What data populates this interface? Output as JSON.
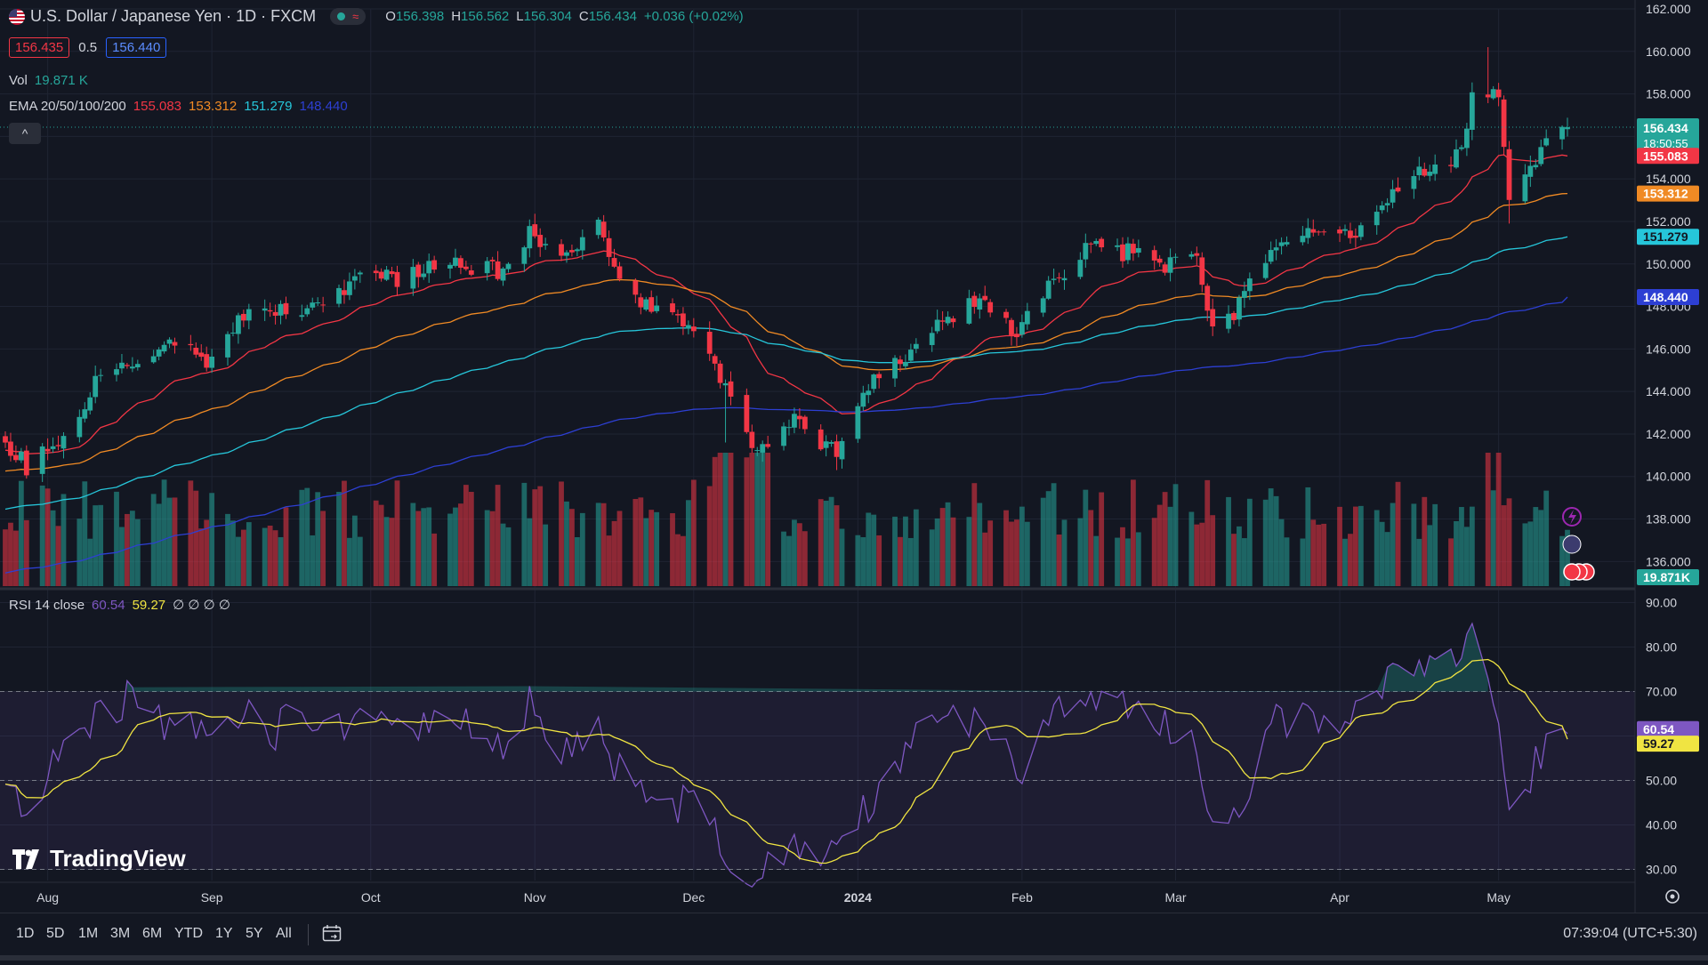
{
  "header": {
    "symbol_title": "U.S. Dollar / Japanese Yen · 1D · FXCM",
    "ohlc": {
      "o_label": "O",
      "o": "156.398",
      "h_label": "H",
      "h": "156.562",
      "l_label": "L",
      "l": "156.304",
      "c_label": "C",
      "c": "156.434",
      "change": "+0.036 (+0.02%)"
    },
    "sell_price": "156.435",
    "spread": "0.5",
    "buy_price": "156.440",
    "vol_label": "Vol",
    "vol_value": "19.871 K",
    "ema_label": "EMA 20/50/100/200",
    "ema_values": [
      "155.083",
      "153.312",
      "151.279",
      "148.440"
    ],
    "collapse_glyph": "^"
  },
  "rsi_legend": {
    "label": "RSI 14 close",
    "rsi": "60.54",
    "ma": "59.27",
    "extra": "∅ ∅ ∅ ∅"
  },
  "colors": {
    "bg": "#131722",
    "up": "#26a69a",
    "down": "#f23645",
    "ema20": "#f23645",
    "ema50": "#f08a24",
    "ema100": "#26c6da",
    "ema200": "#2d3fd3",
    "rsi": "#7e57c2",
    "rsi_ma": "#f0e442",
    "grid": "#1f2433",
    "text": "#d1d4dc"
  },
  "chart_data": [
    {
      "type": "candlestick",
      "title": "U.S. Dollar / Japanese Yen · 1D · FXCM",
      "x_range": [
        "2023-07-24",
        "2024-05-14"
      ],
      "ylim": [
        134.8,
        162.0
      ],
      "yticks": [
        "162.000",
        "160.000",
        "158.000",
        "156.000",
        "154.000",
        "152.000",
        "150.000",
        "148.000",
        "146.000",
        "144.000",
        "142.000",
        "140.000",
        "138.000",
        "136.000"
      ],
      "xticks": [
        {
          "date": "2023-08-01",
          "label": "Aug"
        },
        {
          "date": "2023-09-01",
          "label": "Sep"
        },
        {
          "date": "2023-10-01",
          "label": "Oct"
        },
        {
          "date": "2023-11-01",
          "label": "Nov"
        },
        {
          "date": "2023-12-01",
          "label": "Dec"
        },
        {
          "date": "2024-01-01",
          "label": "2024"
        },
        {
          "date": "2024-02-01",
          "label": "Feb"
        },
        {
          "date": "2024-03-01",
          "label": "Mar"
        },
        {
          "date": "2024-04-01",
          "label": "Apr"
        },
        {
          "date": "2024-05-01",
          "label": "May"
        }
      ],
      "close_anchors": [
        [
          "2023-07-24",
          141.6
        ],
        [
          "2023-07-28",
          140.5
        ],
        [
          "2023-08-04",
          141.8
        ],
        [
          "2023-08-11",
          144.9
        ],
        [
          "2023-08-18",
          145.4
        ],
        [
          "2023-08-25",
          146.4
        ],
        [
          "2023-08-31",
          145.5
        ],
        [
          "2023-09-08",
          147.8
        ],
        [
          "2023-09-15",
          147.8
        ],
        [
          "2023-09-22",
          148.3
        ],
        [
          "2023-09-29",
          149.3
        ],
        [
          "2023-10-06",
          149.3
        ],
        [
          "2023-10-13",
          149.8
        ],
        [
          "2023-10-20",
          149.9
        ],
        [
          "2023-10-27",
          149.6
        ],
        [
          "2023-10-31",
          151.6
        ],
        [
          "2023-11-07",
          150.3
        ],
        [
          "2023-11-13",
          151.7
        ],
        [
          "2023-11-17",
          149.6
        ],
        [
          "2023-11-21",
          148.4
        ],
        [
          "2023-11-28",
          147.4
        ],
        [
          "2023-12-01",
          146.8
        ],
        [
          "2023-12-07",
          144.1
        ],
        [
          "2023-12-13",
          141.0
        ],
        [
          "2023-12-18",
          142.8
        ],
        [
          "2023-12-22",
          142.4
        ],
        [
          "2023-12-28",
          141.0
        ],
        [
          "2024-01-04",
          144.6
        ],
        [
          "2024-01-10",
          145.8
        ],
        [
          "2024-01-16",
          147.1
        ],
        [
          "2024-01-23",
          148.3
        ],
        [
          "2024-01-31",
          146.9
        ],
        [
          "2024-02-05",
          148.7
        ],
        [
          "2024-02-13",
          150.8
        ],
        [
          "2024-02-22",
          150.5
        ],
        [
          "2024-02-29",
          149.9
        ],
        [
          "2024-03-05",
          150.1
        ],
        [
          "2024-03-08",
          147.0
        ],
        [
          "2024-03-12",
          147.7
        ],
        [
          "2024-03-19",
          150.9
        ],
        [
          "2024-03-27",
          151.4
        ],
        [
          "2024-04-05",
          151.6
        ],
        [
          "2024-04-11",
          153.2
        ],
        [
          "2024-04-17",
          154.6
        ],
        [
          "2024-04-24",
          155.2
        ],
        [
          "2024-04-26",
          158.3
        ],
        [
          "2024-04-29",
          157.9
        ],
        [
          "2024-05-01",
          157.7
        ],
        [
          "2024-05-03",
          153.0
        ],
        [
          "2024-05-06",
          153.9
        ],
        [
          "2024-05-09",
          155.5
        ],
        [
          "2024-05-14",
          156.434
        ]
      ],
      "series": [
        {
          "name": "EMA 20",
          "last": 155.083
        },
        {
          "name": "EMA 50",
          "last": 153.312
        },
        {
          "name": "EMA 100",
          "last": 151.279
        },
        {
          "name": "EMA 200",
          "last": 148.44
        }
      ],
      "price_labels": [
        {
          "value": "156.434",
          "sub": "18:50:55",
          "price": 156.434,
          "color": "#26a69a",
          "fg": "#ffffff"
        },
        {
          "value": "155.083",
          "price": 155.083,
          "color": "#f23645",
          "fg": "#ffffff"
        },
        {
          "value": "153.312",
          "price": 153.312,
          "color": "#f08a24",
          "fg": "#ffffff"
        },
        {
          "value": "151.279",
          "price": 151.279,
          "color": "#26c6da",
          "fg": "#131722"
        },
        {
          "value": "148.440",
          "price": 148.44,
          "color": "#2d3fd3",
          "fg": "#ffffff"
        }
      ],
      "volume": {
        "last_label": "19.871K",
        "max_note": "relative"
      }
    },
    {
      "type": "line",
      "title": "RSI 14 close",
      "ylim": [
        27.5,
        92.5
      ],
      "yticks": [
        "90.00",
        "80.00",
        "70.00",
        "60.00",
        "50.00",
        "40.00",
        "30.00"
      ],
      "levels": [
        70,
        50,
        30
      ],
      "series": [
        {
          "name": "RSI",
          "last": 60.54,
          "anchors": [
            [
              "2023-07-24",
              49
            ],
            [
              "2023-07-28",
              43
            ],
            [
              "2023-08-03",
              55
            ],
            [
              "2023-08-10",
              64
            ],
            [
              "2023-08-16",
              68
            ],
            [
              "2023-08-21",
              64
            ],
            [
              "2023-08-29",
              62
            ],
            [
              "2023-09-05",
              67
            ],
            [
              "2023-09-12",
              60
            ],
            [
              "2023-09-18",
              66
            ],
            [
              "2023-09-26",
              63
            ],
            [
              "2023-10-02",
              67
            ],
            [
              "2023-10-09",
              60
            ],
            [
              "2023-10-16",
              64
            ],
            [
              "2023-10-23",
              62
            ],
            [
              "2023-10-27",
              57
            ],
            [
              "2023-10-31",
              67
            ],
            [
              "2023-11-06",
              57
            ],
            [
              "2023-11-13",
              64
            ],
            [
              "2023-11-16",
              54
            ],
            [
              "2023-11-21",
              50
            ],
            [
              "2023-11-27",
              45
            ],
            [
              "2023-12-01",
              44
            ],
            [
              "2023-12-05",
              38
            ],
            [
              "2023-12-08",
              32
            ],
            [
              "2023-12-13",
              29
            ],
            [
              "2023-12-19",
              34
            ],
            [
              "2023-12-22",
              36
            ],
            [
              "2023-12-28",
              33
            ],
            [
              "2024-01-05",
              48
            ],
            [
              "2024-01-11",
              58
            ],
            [
              "2024-01-17",
              66
            ],
            [
              "2024-01-23",
              63
            ],
            [
              "2024-02-01",
              52
            ],
            [
              "2024-02-06",
              64
            ],
            [
              "2024-02-13",
              69
            ],
            [
              "2024-02-22",
              65
            ],
            [
              "2024-02-29",
              62
            ],
            [
              "2024-03-05",
              58
            ],
            [
              "2024-03-08",
              38
            ],
            [
              "2024-03-13",
              44
            ],
            [
              "2024-03-19",
              63
            ],
            [
              "2024-03-26",
              64
            ],
            [
              "2024-04-03",
              62
            ],
            [
              "2024-04-11",
              75
            ],
            [
              "2024-04-17",
              77
            ],
            [
              "2024-04-24",
              78
            ],
            [
              "2024-04-26",
              86
            ],
            [
              "2024-04-29",
              75
            ],
            [
              "2024-05-01",
              67
            ],
            [
              "2024-05-03",
              46
            ],
            [
              "2024-05-06",
              50
            ],
            [
              "2024-05-09",
              55
            ],
            [
              "2024-05-14",
              60.54
            ]
          ]
        },
        {
          "name": "RSI-based MA",
          "last": 59.27
        }
      ],
      "price_labels": [
        {
          "value": "60.54",
          "price": 60.54,
          "color": "#7e57c2",
          "fg": "#ffffff"
        },
        {
          "value": "59.27",
          "price": 59.27,
          "color": "#f0e442",
          "fg": "#131722"
        }
      ]
    }
  ],
  "bottom_bar": {
    "ranges": [
      "1D",
      "5D",
      "1M",
      "3M",
      "6M",
      "YTD",
      "1Y",
      "5Y",
      "All"
    ],
    "time": "07:39:04 (UTC+5:30)"
  },
  "branding": {
    "logo_text": "TradingView"
  }
}
